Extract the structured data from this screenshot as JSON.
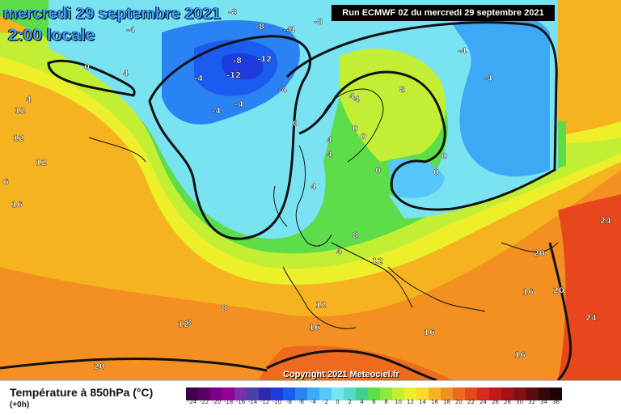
{
  "header": {
    "date": "mercredi 29 septembre 2021",
    "time": "2:00 locale",
    "run": "Run ECMWF 0Z du mercredi 29 septembre 2021"
  },
  "copyright": "Copyright 2021 Meteociel.fr",
  "legend": {
    "title": "Température à 850hPa (°C)",
    "subtitle": "(+0h)",
    "ticks": [
      "-24",
      "-22",
      "-20",
      "-18",
      "-16",
      "-14",
      "-12",
      "-10",
      "-8",
      "-6",
      "-4",
      "-2",
      "0",
      "2",
      "4",
      "6",
      "8",
      "10",
      "12",
      "14",
      "16",
      "18",
      "20",
      "22",
      "24",
      "26",
      "28",
      "30",
      "32",
      "34",
      "36"
    ],
    "colors": [
      "#3d0044",
      "#5a0062",
      "#7c0087",
      "#960099",
      "#7d2eaa",
      "#4b3fae",
      "#2a2ab5",
      "#1f3be0",
      "#1b5cf0",
      "#2b82f2",
      "#3da8f5",
      "#56c7f8",
      "#7ae3f2",
      "#55d8c8",
      "#3fcf88",
      "#5ddd4a",
      "#8ce83a",
      "#c2ef33",
      "#ecef2a",
      "#f8d828",
      "#f7b21f",
      "#f39021",
      "#ee6a1f",
      "#e8471d",
      "#d92a1e",
      "#c21a1a",
      "#a3121a",
      "#821016",
      "#5e0a10",
      "#3a0608",
      "#200404"
    ]
  },
  "map_labels": [
    {
      "text": "-8"
    },
    {
      "text": "-8"
    },
    {
      "text": "-4"
    },
    {
      "text": "-8"
    },
    {
      "text": "-12"
    },
    {
      "text": "-12"
    },
    {
      "text": "-8"
    },
    {
      "text": "-4"
    },
    {
      "text": "-4"
    },
    {
      "text": "-4"
    },
    {
      "text": "-4"
    },
    {
      "text": "-4"
    },
    {
      "text": "-4"
    },
    {
      "text": "-4"
    },
    {
      "text": "-4"
    },
    {
      "text": "4"
    },
    {
      "text": "4"
    },
    {
      "text": "0"
    },
    {
      "text": "8"
    },
    {
      "text": "12"
    },
    {
      "text": "12"
    },
    {
      "text": "12"
    },
    {
      "text": "6"
    },
    {
      "text": "16"
    },
    {
      "text": "0"
    },
    {
      "text": "4"
    },
    {
      "text": "4"
    },
    {
      "text": "4"
    },
    {
      "text": "0"
    },
    {
      "text": "0"
    },
    {
      "text": "4"
    },
    {
      "text": "8"
    },
    {
      "text": "4"
    },
    {
      "text": "0"
    },
    {
      "text": "8"
    },
    {
      "text": "4"
    },
    {
      "text": "0"
    },
    {
      "text": "0"
    },
    {
      "text": "12"
    },
    {
      "text": "8"
    },
    {
      "text": "12"
    },
    {
      "text": "12"
    },
    {
      "text": "16"
    },
    {
      "text": "16"
    },
    {
      "text": "16"
    },
    {
      "text": "20"
    },
    {
      "text": "20"
    },
    {
      "text": "24"
    },
    {
      "text": "24"
    },
    {
      "text": "16"
    },
    {
      "text": "20"
    }
  ]
}
